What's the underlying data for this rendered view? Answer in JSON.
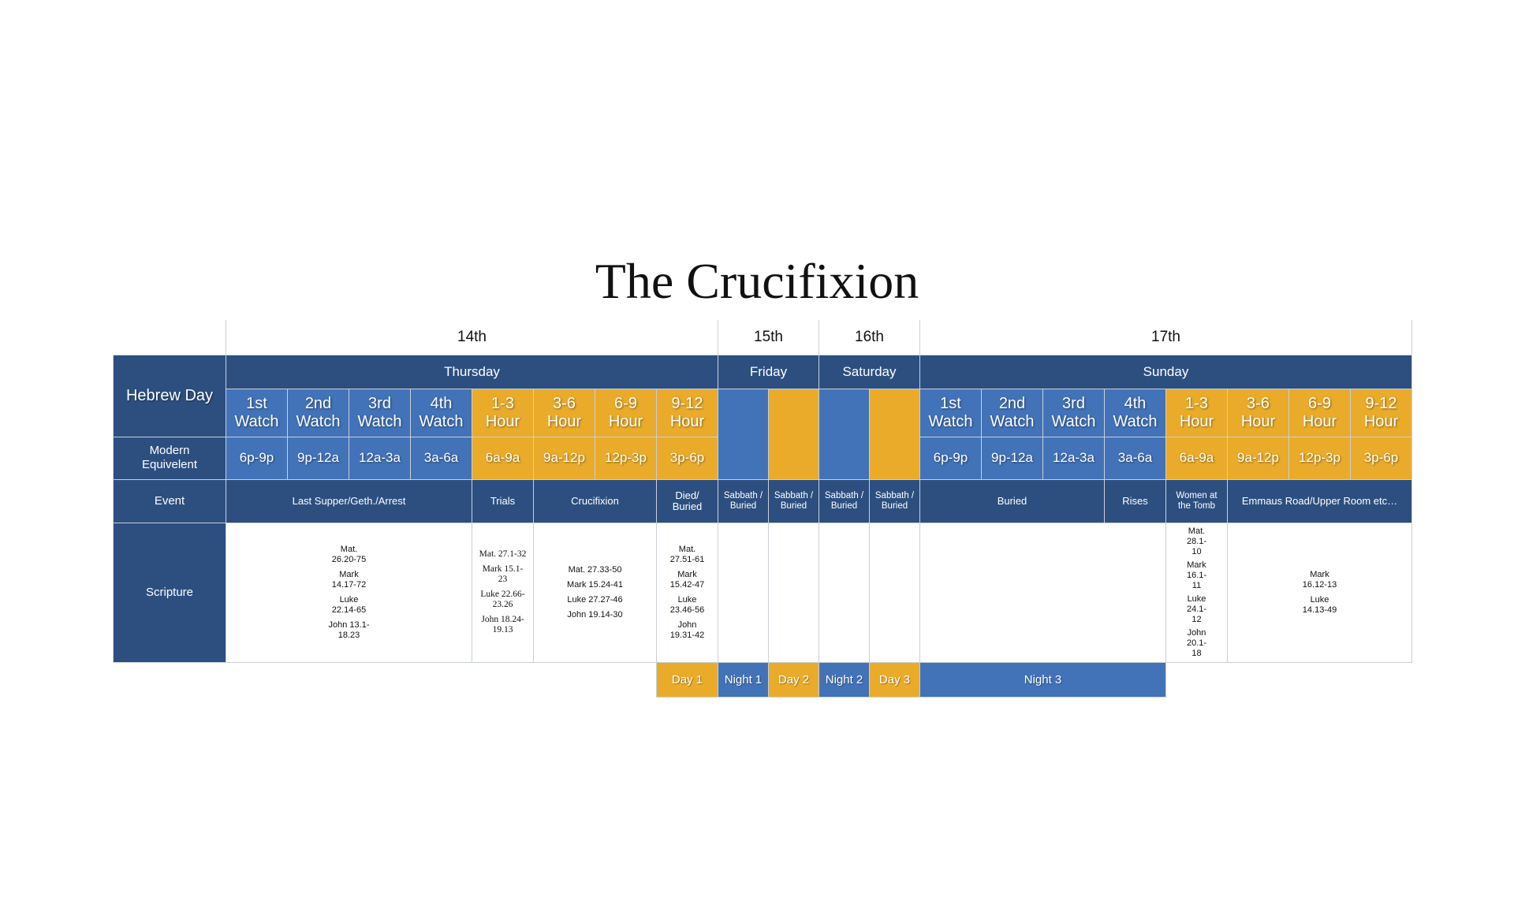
{
  "title": "The Crucifixion",
  "dates": [
    "14th",
    "15th",
    "16th",
    "17th"
  ],
  "row_labels": {
    "hebrew_day": "Hebrew Day",
    "modern": "Modern Equivelent",
    "event": "Event",
    "scripture": "Scripture"
  },
  "days": [
    "Thursday",
    "Friday",
    "Saturday",
    "Sunday"
  ],
  "periods": [
    {
      "label": "1st Watch",
      "modern": "6p-9p"
    },
    {
      "label": "2nd Watch",
      "modern": "9p-12a"
    },
    {
      "label": "3rd Watch",
      "modern": "12a-3a"
    },
    {
      "label": "4th Watch",
      "modern": "3a-6a"
    },
    {
      "label": "1-3 Hour",
      "modern": "6a-9a"
    },
    {
      "label": "3-6 Hour",
      "modern": "9a-12p"
    },
    {
      "label": "6-9 Hour",
      "modern": "12p-3p"
    },
    {
      "label": "9-12 Hour",
      "modern": "3p-6p"
    }
  ],
  "events": {
    "last_supper": "Last Supper/Geth./Arrest",
    "trials": "Trials",
    "crucifixion": "Crucifixion",
    "died_buried": "Died/ Buried",
    "sabbath_buried": "Sabbath / Buried",
    "buried": "Buried",
    "rises": "Rises",
    "women_tomb": "Women at the Tomb",
    "emmaus": "Emmaus Road/Upper Room etc…"
  },
  "scripture": {
    "last_supper": [
      "Mat. 26.20-75",
      "Mark 14.17-72",
      "Luke 22.14-65",
      "John 13.1-18.23"
    ],
    "trials": [
      "Mat. 27.1-32",
      "Mark 15.1-23",
      "Luke 22.66-23.26",
      "John 18.24-19.13"
    ],
    "crucifixion": [
      "Mat. 27.33-50",
      "Mark 15.24-41",
      "Luke 27.27-46",
      "John 19.14-30"
    ],
    "died_buried": [
      "Mat. 27.51-61",
      "Mark 15.42-47",
      "Luke 23.46-56",
      "John 19.31-42"
    ],
    "women_tomb": [
      "Mat. 28.1-10",
      "Mark 16.1-11",
      "Luke 24.1- 12",
      "John 20.1- 18"
    ],
    "emmaus": [
      "Mark 16.12-13",
      "Luke 14.13-49"
    ]
  },
  "counts": [
    "Day 1",
    "Night 1",
    "Day 2",
    "Night 2",
    "Day 3",
    "Night 3"
  ],
  "colors": {
    "navy": "#2c4f80",
    "blue": "#4272b8",
    "gold": "#e9ab29"
  }
}
